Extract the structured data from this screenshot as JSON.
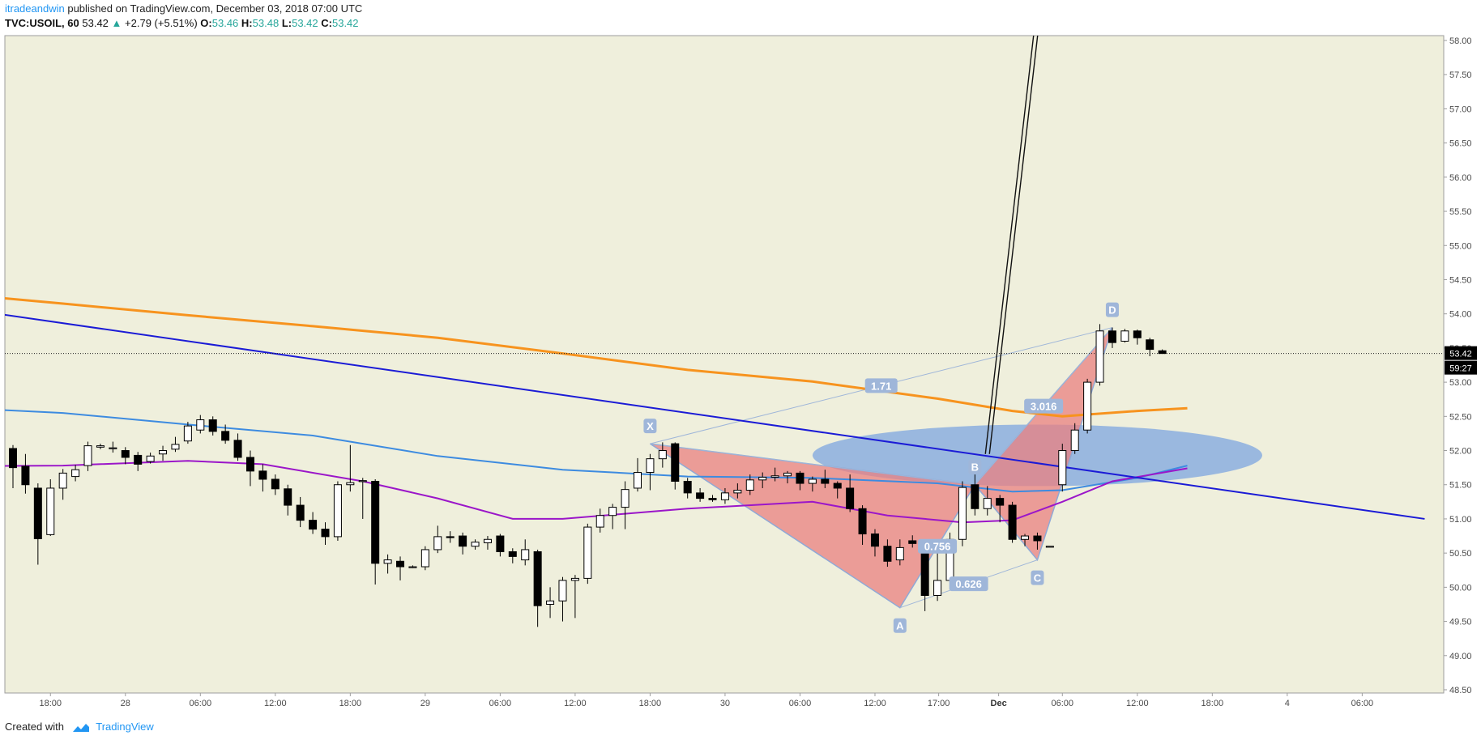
{
  "header": {
    "author": "itradeandwin",
    "published_text": "published on TradingView.com, December 03, 2018 07:00 UTC",
    "symbol": "TVC:USOIL, 60",
    "last": "53.42",
    "change_arrow": "▲",
    "change": "+2.79 (+5.51%)",
    "o_label": "O:",
    "o_value": "53.46",
    "h_label": "H:",
    "h_value": "53.48",
    "l_label": "L:",
    "l_value": "53.42",
    "c_label": "C:",
    "c_value": "53.42"
  },
  "footer": {
    "created_with": "Created with",
    "brand": "TradingView"
  },
  "colors": {
    "background": "#efefdc",
    "ema_orange": "#f7931e",
    "ma_blue": "#3d8be0",
    "ma_purple": "#9b16c9",
    "trendline": "#1b1bd6",
    "pattern_fill": "#e98080",
    "ellipse_fill": "#7ea6e0",
    "pattern_label_bg": "#9fb6d9"
  },
  "chart_data": {
    "type": "candlestick",
    "symbol": "TVC:USOIL",
    "interval": "60",
    "ylim": [
      48.1,
      58.1
    ],
    "price_ticks": [
      "58.00",
      "57.50",
      "57.00",
      "56.50",
      "56.00",
      "55.50",
      "55.00",
      "54.50",
      "54.00",
      "53.50",
      "53.00",
      "52.50",
      "52.00",
      "51.50",
      "51.00",
      "50.50",
      "50.00",
      "49.50",
      "49.00",
      "48.50"
    ],
    "time_ticks": [
      "18:00",
      "28",
      "06:00",
      "12:00",
      "18:00",
      "29",
      "06:00",
      "12:00",
      "18:00",
      "30",
      "06:00",
      "12:00",
      "17:00",
      "Dec",
      "06:00",
      "12:00",
      "18:00",
      "4",
      "06:00"
    ],
    "current_price_label": "53.42",
    "countdown_label": "59:27",
    "candles": [
      [
        52.03,
        51.75,
        52.08,
        51.45
      ],
      [
        51.77,
        51.5,
        51.95,
        51.37
      ],
      [
        51.45,
        50.71,
        51.52,
        50.33
      ],
      [
        50.77,
        51.45,
        51.58,
        50.75
      ],
      [
        51.45,
        51.67,
        51.73,
        51.28
      ],
      [
        51.62,
        51.72,
        51.79,
        51.55
      ],
      [
        51.78,
        52.07,
        52.13,
        51.7
      ],
      [
        52.05,
        52.07,
        52.1,
        52.02
      ],
      [
        52.04,
        52.04,
        52.13,
        51.97
      ],
      [
        52.0,
        51.9,
        52.05,
        51.8
      ],
      [
        51.93,
        51.8,
        51.98,
        51.7
      ],
      [
        51.84,
        51.92,
        51.97,
        51.81
      ],
      [
        51.95,
        52.0,
        52.07,
        51.85
      ],
      [
        52.02,
        52.09,
        52.2,
        51.98
      ],
      [
        52.14,
        52.36,
        52.42,
        52.1
      ],
      [
        52.3,
        52.45,
        52.52,
        52.25
      ],
      [
        52.45,
        52.28,
        52.5,
        52.22
      ],
      [
        52.28,
        52.15,
        52.38,
        52.1
      ],
      [
        52.15,
        51.9,
        52.25,
        51.85
      ],
      [
        51.9,
        51.7,
        52.0,
        51.48
      ],
      [
        51.7,
        51.58,
        51.8,
        51.4
      ],
      [
        51.58,
        51.44,
        51.65,
        51.35
      ],
      [
        51.44,
        51.2,
        51.5,
        51.05
      ],
      [
        51.2,
        50.98,
        51.32,
        50.88
      ],
      [
        50.98,
        50.85,
        51.1,
        50.78
      ],
      [
        50.85,
        50.74,
        50.95,
        50.62
      ],
      [
        50.74,
        51.5,
        51.55,
        50.68
      ],
      [
        51.5,
        51.53,
        52.08,
        51.4
      ],
      [
        51.55,
        51.56,
        51.6,
        51.0
      ],
      [
        51.55,
        50.35,
        51.58,
        50.04
      ],
      [
        50.35,
        50.4,
        50.48,
        50.2
      ],
      [
        50.38,
        50.3,
        50.45,
        50.1
      ],
      [
        50.3,
        50.3,
        50.32,
        50.28
      ],
      [
        50.3,
        50.55,
        50.6,
        50.25
      ],
      [
        50.55,
        50.74,
        50.9,
        50.5
      ],
      [
        50.74,
        50.73,
        50.82,
        50.65
      ],
      [
        50.75,
        50.6,
        50.8,
        50.48
      ],
      [
        50.6,
        50.66,
        50.7,
        50.55
      ],
      [
        50.65,
        50.7,
        50.75,
        50.55
      ],
      [
        50.75,
        50.52,
        50.78,
        50.45
      ],
      [
        50.52,
        50.45,
        50.57,
        50.35
      ],
      [
        50.4,
        50.55,
        50.7,
        50.32
      ],
      [
        50.52,
        49.73,
        50.55,
        49.42
      ],
      [
        49.75,
        49.8,
        50.0,
        49.55
      ],
      [
        49.8,
        50.1,
        50.15,
        49.5
      ],
      [
        50.1,
        50.13,
        50.18,
        49.55
      ],
      [
        50.13,
        50.88,
        50.93,
        50.05
      ],
      [
        50.88,
        51.05,
        51.15,
        50.8
      ],
      [
        51.05,
        51.17,
        51.22,
        50.85
      ],
      [
        51.17,
        51.43,
        51.55,
        50.85
      ],
      [
        51.45,
        51.68,
        51.89,
        51.4
      ],
      [
        51.68,
        51.88,
        51.95,
        51.42
      ],
      [
        51.88,
        52.0,
        52.12,
        51.75
      ],
      [
        52.1,
        51.55,
        52.12,
        51.43
      ],
      [
        51.55,
        51.38,
        51.6,
        51.3
      ],
      [
        51.38,
        51.3,
        51.45,
        51.25
      ],
      [
        51.3,
        51.28,
        51.35,
        51.25
      ],
      [
        51.28,
        51.38,
        51.45,
        51.22
      ],
      [
        51.38,
        51.42,
        51.52,
        51.3
      ],
      [
        51.42,
        51.57,
        51.65,
        51.35
      ],
      [
        51.57,
        51.61,
        51.68,
        51.45
      ],
      [
        51.61,
        51.63,
        51.75,
        51.55
      ],
      [
        51.63,
        51.67,
        51.7,
        51.52
      ],
      [
        51.67,
        51.52,
        51.7,
        51.42
      ],
      [
        51.52,
        51.58,
        51.62,
        51.4
      ],
      [
        51.58,
        51.52,
        51.72,
        51.45
      ],
      [
        51.52,
        51.45,
        51.55,
        51.3
      ],
      [
        51.45,
        51.15,
        51.65,
        51.1
      ],
      [
        51.15,
        50.78,
        51.2,
        50.62
      ],
      [
        50.78,
        50.6,
        50.85,
        50.45
      ],
      [
        50.6,
        50.38,
        50.7,
        50.3
      ],
      [
        50.4,
        50.58,
        50.7,
        50.32
      ],
      [
        50.68,
        50.64,
        50.76,
        50.58
      ],
      [
        50.65,
        49.88,
        50.7,
        49.65
      ],
      [
        49.88,
        50.1,
        50.55,
        49.8
      ],
      [
        50.1,
        50.7,
        50.8,
        50.05
      ],
      [
        50.7,
        51.46,
        51.55,
        50.6
      ],
      [
        51.5,
        51.15,
        51.65,
        51.05
      ],
      [
        51.15,
        51.3,
        51.48,
        51.05
      ],
      [
        51.3,
        51.2,
        51.35,
        50.95
      ],
      [
        51.2,
        50.7,
        51.25,
        50.65
      ],
      [
        50.7,
        50.75,
        50.78,
        50.6
      ],
      [
        50.75,
        50.68,
        50.8,
        50.55
      ],
      [
        50.6,
        50.6,
        50.6,
        50.6
      ],
      [
        51.5,
        52.0,
        52.1,
        51.4
      ],
      [
        52.0,
        52.3,
        52.4,
        51.95
      ],
      [
        52.3,
        53.0,
        53.05,
        52.25
      ],
      [
        53.0,
        53.75,
        53.85,
        52.95
      ],
      [
        53.75,
        53.58,
        53.8,
        53.5
      ],
      [
        53.6,
        53.75,
        53.78,
        53.58
      ],
      [
        53.75,
        53.65,
        53.77,
        53.55
      ],
      [
        53.62,
        53.48,
        53.65,
        53.38
      ],
      [
        53.46,
        53.42,
        53.48,
        53.42
      ]
    ],
    "pattern_points": [
      {
        "label": "X",
        "index": 51,
        "price": 52.1
      },
      {
        "label": "A",
        "index": 71,
        "price": 49.7
      },
      {
        "label": "B",
        "index": 77,
        "price": 51.5
      },
      {
        "label": "C",
        "index": 82,
        "price": 50.4
      },
      {
        "label": "D",
        "index": 88,
        "price": 53.8
      }
    ],
    "pattern_ratios": [
      "1.71",
      "0.756",
      "3.016",
      "0.626"
    ],
    "moving_averages": [
      {
        "color": "#f7931e",
        "points": [
          [
            -5,
            54.3
          ],
          [
            4,
            54.15
          ],
          [
            14,
            53.98
          ],
          [
            24,
            53.82
          ],
          [
            34,
            53.65
          ],
          [
            44,
            53.42
          ],
          [
            54,
            53.18
          ],
          [
            64,
            53.01
          ],
          [
            74,
            52.76
          ],
          [
            80,
            52.58
          ],
          [
            84,
            52.5
          ],
          [
            90,
            52.58
          ],
          [
            94,
            52.62
          ]
        ]
      },
      {
        "color": "#3d8be0",
        "points": [
          [
            -5,
            52.63
          ],
          [
            4,
            52.55
          ],
          [
            14,
            52.38
          ],
          [
            24,
            52.22
          ],
          [
            34,
            51.92
          ],
          [
            44,
            51.72
          ],
          [
            54,
            51.62
          ],
          [
            64,
            51.6
          ],
          [
            74,
            51.52
          ],
          [
            80,
            51.4
          ],
          [
            84,
            51.42
          ],
          [
            90,
            51.6
          ],
          [
            94,
            51.78
          ]
        ]
      },
      {
        "color": "#9b16c9",
        "points": [
          [
            -5,
            51.77
          ],
          [
            4,
            51.78
          ],
          [
            14,
            51.85
          ],
          [
            20,
            51.8
          ],
          [
            28,
            51.55
          ],
          [
            34,
            51.3
          ],
          [
            40,
            51.0
          ],
          [
            44,
            51.0
          ],
          [
            54,
            51.15
          ],
          [
            64,
            51.25
          ],
          [
            70,
            51.05
          ],
          [
            76,
            50.95
          ],
          [
            80,
            50.98
          ],
          [
            84,
            51.25
          ],
          [
            88,
            51.55
          ],
          [
            94,
            51.74
          ]
        ]
      }
    ],
    "trendline": {
      "from": [
        -5,
        54.1
      ],
      "to": [
        113,
        51.0
      ]
    },
    "projection_line": {
      "from": [
        78,
        51.95
      ],
      "to": [
        82,
        58.3
      ]
    },
    "ellipse": {
      "center": [
        82,
        51.93
      ],
      "rx_bars": 18,
      "ry_price": 0.45
    }
  }
}
